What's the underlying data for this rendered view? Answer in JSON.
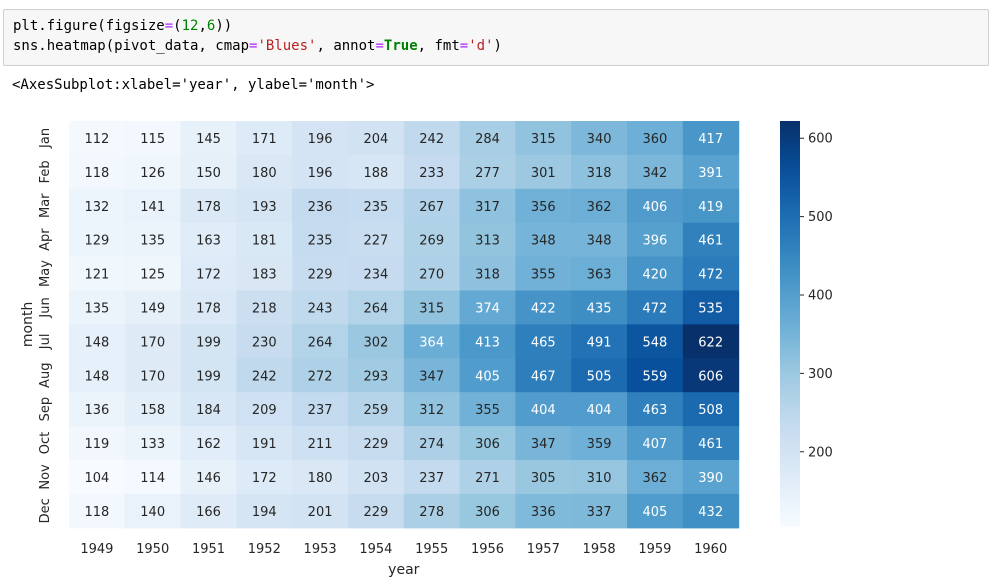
{
  "code_cell": {
    "lines": [
      [
        {
          "t": "plt.figure(figsize",
          "c": "tk-fn"
        },
        {
          "t": "=",
          "c": "tk-op"
        },
        {
          "t": "(",
          "c": "tk-fn"
        },
        {
          "t": "12",
          "c": "tk-num"
        },
        {
          "t": ",",
          "c": "tk-fn"
        },
        {
          "t": "6",
          "c": "tk-num"
        },
        {
          "t": "))",
          "c": "tk-fn"
        }
      ],
      [
        {
          "t": "sns.heatmap(pivot_data, cmap",
          "c": "tk-fn"
        },
        {
          "t": "=",
          "c": "tk-op"
        },
        {
          "t": "'Blues'",
          "c": "tk-str"
        },
        {
          "t": ", annot",
          "c": "tk-fn"
        },
        {
          "t": "=",
          "c": "tk-op"
        },
        {
          "t": "True",
          "c": "tk-kw"
        },
        {
          "t": ", fmt",
          "c": "tk-fn"
        },
        {
          "t": "=",
          "c": "tk-op"
        },
        {
          "t": "'d'",
          "c": "tk-str"
        },
        {
          "t": ")",
          "c": "tk-fn"
        }
      ]
    ]
  },
  "output": {
    "repr": "<AxesSubplot:xlabel='year', ylabel='month'>"
  },
  "colors": {
    "cmap_low": "#f7fbff",
    "cmap_high": "#08306b",
    "annot_dark": "#262626",
    "annot_light": "#ffffff",
    "axis_text": "#262626"
  },
  "chart_data": {
    "type": "heatmap",
    "title": "",
    "xlabel": "year",
    "ylabel": "month",
    "x": [
      "1949",
      "1950",
      "1951",
      "1952",
      "1953",
      "1954",
      "1955",
      "1956",
      "1957",
      "1958",
      "1959",
      "1960"
    ],
    "y": [
      "Jan",
      "Feb",
      "Mar",
      "Apr",
      "May",
      "Jun",
      "Jul",
      "Aug",
      "Sep",
      "Oct",
      "Nov",
      "Dec"
    ],
    "values": [
      [
        112,
        115,
        145,
        171,
        196,
        204,
        242,
        284,
        315,
        340,
        360,
        417
      ],
      [
        118,
        126,
        150,
        180,
        196,
        188,
        233,
        277,
        301,
        318,
        342,
        391
      ],
      [
        132,
        141,
        178,
        193,
        236,
        235,
        267,
        317,
        356,
        362,
        406,
        419
      ],
      [
        129,
        135,
        163,
        181,
        235,
        227,
        269,
        313,
        348,
        348,
        396,
        461
      ],
      [
        121,
        125,
        172,
        183,
        229,
        234,
        270,
        318,
        355,
        363,
        420,
        472
      ],
      [
        135,
        149,
        178,
        218,
        243,
        264,
        315,
        374,
        422,
        435,
        472,
        535
      ],
      [
        148,
        170,
        199,
        230,
        264,
        302,
        364,
        413,
        465,
        491,
        548,
        622
      ],
      [
        148,
        170,
        199,
        242,
        272,
        293,
        347,
        405,
        467,
        505,
        559,
        606
      ],
      [
        136,
        158,
        184,
        209,
        237,
        259,
        312,
        355,
        404,
        404,
        463,
        508
      ],
      [
        119,
        133,
        162,
        191,
        211,
        229,
        274,
        306,
        347,
        359,
        407,
        461
      ],
      [
        104,
        114,
        146,
        172,
        180,
        203,
        237,
        271,
        305,
        310,
        362,
        390
      ],
      [
        118,
        140,
        166,
        194,
        201,
        229,
        278,
        306,
        336,
        337,
        405,
        432
      ]
    ],
    "colormap": "Blues",
    "vmin": 104,
    "vmax": 622,
    "colorbar_ticks": [
      200,
      300,
      400,
      500,
      600
    ],
    "annot": true
  }
}
